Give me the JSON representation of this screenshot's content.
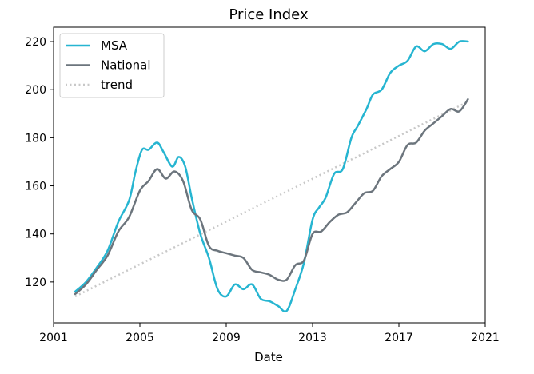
{
  "chart_data": {
    "type": "line",
    "title": "Price Index",
    "xlabel": "Date",
    "ylabel": "",
    "xlim": [
      2001,
      2021
    ],
    "ylim": [
      103,
      226
    ],
    "xticks": [
      2001,
      2005,
      2009,
      2013,
      2017,
      2021
    ],
    "yticks": [
      120,
      140,
      160,
      180,
      200,
      220
    ],
    "grid": false,
    "legend_position": "upper-left",
    "series": [
      {
        "name": "MSA",
        "color": "#26b5d1",
        "style": "solid",
        "x": [
          2002.0,
          2002.5,
          2003.0,
          2003.5,
          2004.0,
          2004.5,
          2004.8,
          2005.1,
          2005.4,
          2005.8,
          2006.1,
          2006.5,
          2006.8,
          2007.1,
          2007.4,
          2007.8,
          2008.2,
          2008.6,
          2009.0,
          2009.4,
          2009.8,
          2010.2,
          2010.6,
          2011.0,
          2011.4,
          2011.8,
          2012.2,
          2012.6,
          2013.0,
          2013.3,
          2013.6,
          2014.0,
          2014.4,
          2014.8,
          2015.1,
          2015.5,
          2015.8,
          2016.2,
          2016.6,
          2017.0,
          2017.4,
          2017.8,
          2018.2,
          2018.6,
          2019.0,
          2019.4,
          2019.8,
          2020.2
        ],
        "y": [
          116,
          120,
          126,
          133,
          145,
          154,
          166,
          175,
          175,
          178,
          174,
          168,
          172,
          168,
          155,
          140,
          130,
          117,
          114,
          119,
          117,
          119,
          113,
          112,
          110,
          108,
          117,
          128,
          146,
          151,
          155,
          165,
          167,
          180,
          185,
          192,
          198,
          200,
          207,
          210,
          212,
          218,
          216,
          219,
          219,
          217,
          220,
          220
        ]
      },
      {
        "name": "National",
        "color": "#6c757d",
        "style": "solid",
        "x": [
          2002.0,
          2002.5,
          2003.0,
          2003.5,
          2004.0,
          2004.5,
          2005.0,
          2005.4,
          2005.8,
          2006.2,
          2006.6,
          2007.0,
          2007.4,
          2007.8,
          2008.2,
          2008.6,
          2009.0,
          2009.4,
          2009.8,
          2010.2,
          2010.6,
          2011.0,
          2011.4,
          2011.8,
          2012.2,
          2012.6,
          2013.0,
          2013.4,
          2013.8,
          2014.2,
          2014.6,
          2015.0,
          2015.4,
          2015.8,
          2016.2,
          2016.6,
          2017.0,
          2017.4,
          2017.8,
          2018.2,
          2018.6,
          2019.0,
          2019.4,
          2019.8,
          2020.2
        ],
        "y": [
          115,
          119,
          125,
          131,
          141,
          147,
          158,
          162,
          167,
          163,
          166,
          162,
          150,
          146,
          135,
          133,
          132,
          131,
          130,
          125,
          124,
          123,
          121,
          121,
          127,
          129,
          140,
          141,
          145,
          148,
          149,
          153,
          157,
          158,
          164,
          167,
          170,
          177,
          178,
          183,
          186,
          189,
          192,
          191,
          196
        ]
      },
      {
        "name": "trend",
        "color": "#c8c8c8",
        "style": "dotted",
        "x": [
          2002.0,
          2020.2
        ],
        "y": [
          114,
          195
        ]
      }
    ]
  }
}
